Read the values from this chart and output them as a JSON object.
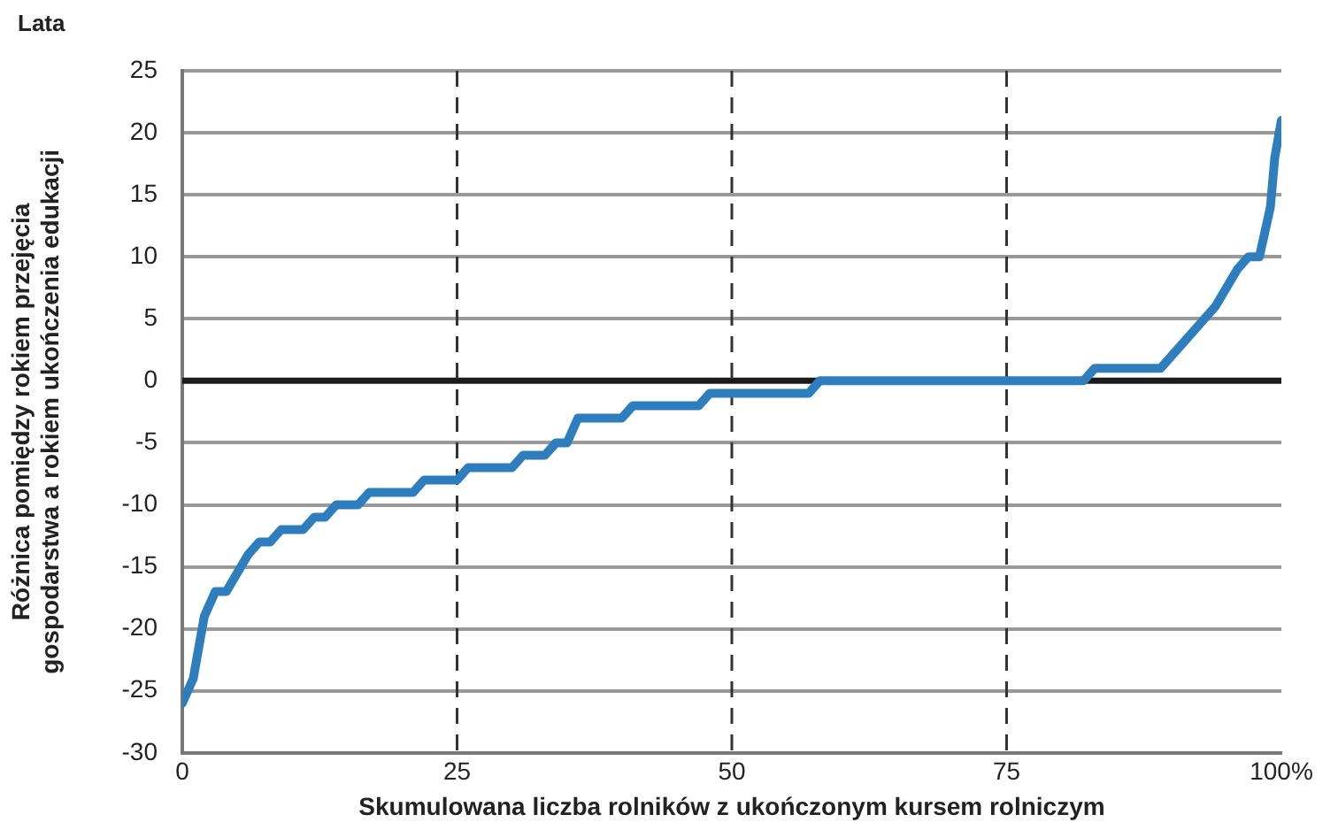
{
  "chart_data": {
    "type": "line",
    "xlabel": "Skumulowana liczba rolników z ukończonym kursem rolniczym",
    "ylabel": "Różnica pomiędzy rokiem przejęcia\ngospodarstwa a rokiem ukończenia edukacji",
    "annotations": [
      "Lata"
    ],
    "x": [
      0,
      1,
      2,
      3,
      4,
      6,
      7,
      8,
      9,
      11,
      12,
      13,
      14,
      16,
      17,
      21,
      22,
      25,
      26,
      30,
      31,
      33,
      34,
      35,
      36,
      40,
      41,
      47,
      48,
      57,
      58,
      82,
      83,
      89,
      90,
      91,
      93,
      94,
      96,
      97,
      98,
      98.5,
      99,
      99.4,
      100
    ],
    "series": [
      {
        "color": "#2e7dbd",
        "values": [
          -26,
          -24,
          -19,
          -17,
          -17,
          -14,
          -13,
          -13,
          -12,
          -12,
          -11,
          -11,
          -10,
          -10,
          -9,
          -9,
          -8,
          -8,
          -7,
          -7,
          -6,
          -6,
          -5,
          -5,
          -3,
          -3,
          -2,
          -2,
          -1,
          -1,
          0,
          0,
          1,
          1,
          2,
          3,
          5,
          6,
          9,
          10,
          10,
          12,
          14,
          18,
          21
        ]
      }
    ],
    "xlim": [
      0,
      100
    ],
    "xticks": [
      0,
      25,
      50,
      {
        "value": 100,
        "label": "100%"
      },
      75
    ],
    "ylim": [
      -30,
      25
    ],
    "yticks": [
      -30,
      -25,
      -20,
      -15,
      -10,
      -5,
      0,
      5,
      10,
      15,
      20,
      25
    ],
    "grid": "y",
    "legend": false,
    "marker": "none",
    "line_style": "solid",
    "ref_lines": [
      {
        "axis": "y",
        "value": 0,
        "color": "#1a1a1a",
        "line_style": "solid"
      },
      {
        "axis": "x",
        "value": 25,
        "color": "#333333",
        "line_style": "dashed"
      },
      {
        "axis": "x",
        "value": 50,
        "color": "#333333",
        "line_style": "dashed"
      },
      {
        "axis": "x",
        "value": 75,
        "color": "#333333",
        "line_style": "dashed"
      }
    ]
  }
}
